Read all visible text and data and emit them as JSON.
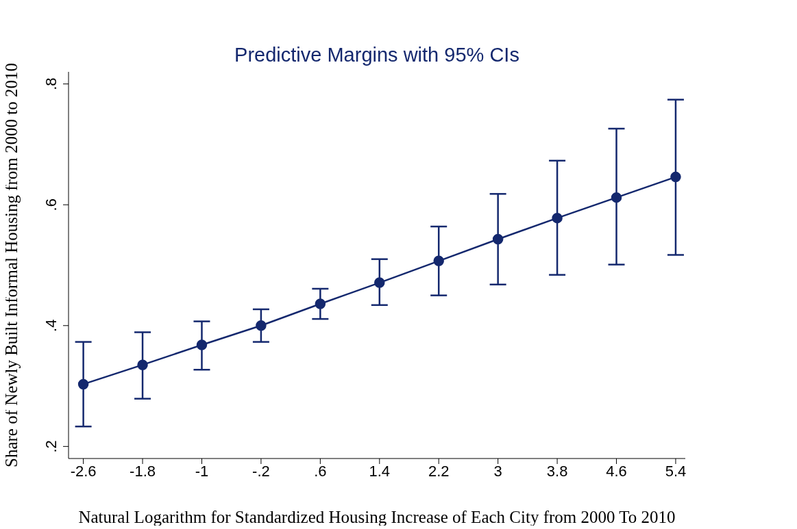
{
  "chart_data": {
    "type": "line",
    "title": "Predictive Margins with 95% CIs",
    "xlabel": "Natural Logarithm for Standardized Housing Increase of Each City from 2000 To 2010",
    "ylabel": "Share of Newly Built Informal Housing from 2000 to 2010",
    "x": [
      -2.6,
      -1.8,
      -1,
      -0.2,
      0.6,
      1.4,
      2.2,
      3,
      3.8,
      4.6,
      5.4
    ],
    "series": [
      {
        "color": "#14286e",
        "values": [
          0.303,
          0.335,
          0.368,
          0.4,
          0.436,
          0.471,
          0.507,
          0.543,
          0.578,
          0.612,
          0.646
        ],
        "errors": [
          [
            0.233,
            0.373
          ],
          [
            0.279,
            0.389
          ],
          [
            0.327,
            0.407
          ],
          [
            0.373,
            0.427
          ],
          [
            0.411,
            0.461
          ],
          [
            0.434,
            0.51
          ],
          [
            0.45,
            0.564
          ],
          [
            0.468,
            0.618
          ],
          [
            0.484,
            0.673
          ],
          [
            0.501,
            0.726
          ],
          [
            0.517,
            0.774
          ]
        ]
      }
    ],
    "xlim": [
      -2.8,
      5.53
    ],
    "xticks": [
      -2.6,
      -1.8,
      -1,
      {
        "value": -0.2,
        "label": "-.2"
      },
      {
        "value": 0.6,
        "label": ".6"
      },
      1.4,
      2.2,
      3,
      3.8,
      4.6,
      5.4
    ],
    "ylim": [
      0.18,
      0.82
    ],
    "yticks": [
      {
        "value": 0.2,
        "label": ".2"
      },
      {
        "value": 0.4,
        "label": ".4"
      },
      {
        "value": 0.6,
        "label": ".6"
      },
      {
        "value": 0.8,
        "label": ".8"
      }
    ],
    "grid": false,
    "legend": false,
    "marker": "circle",
    "line_style": "solid"
  }
}
